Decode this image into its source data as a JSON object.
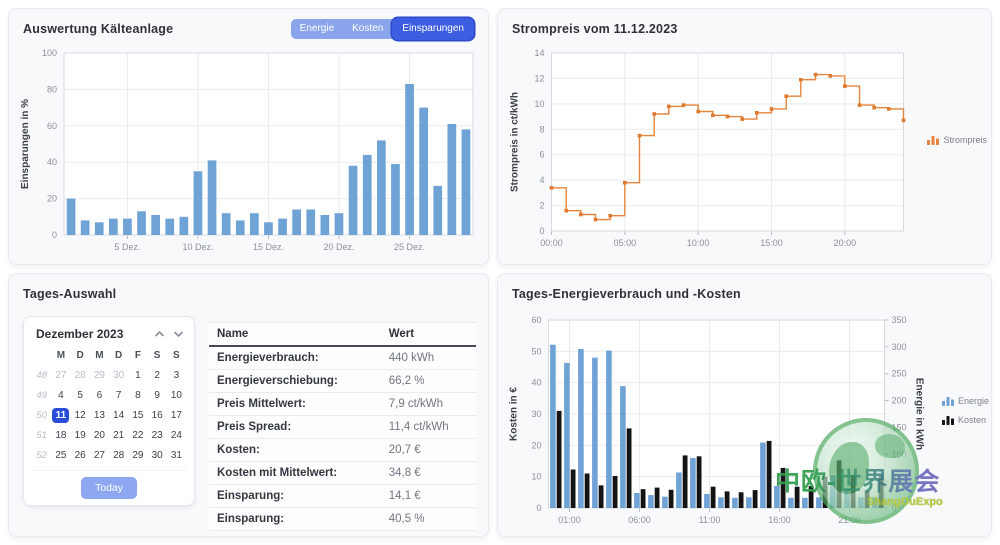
{
  "panels": {
    "auswertung": {
      "title": "Auswertung Kälteanlage",
      "buttons": [
        {
          "label": "Energie",
          "active": false
        },
        {
          "label": "Kosten",
          "active": false
        },
        {
          "label": "Einsparungen",
          "active": true
        }
      ]
    },
    "strompreis": {
      "title": "Strompreis vom 11.12.2023"
    },
    "tagesauswahl": {
      "title": "Tages-Auswahl",
      "calendar": {
        "month_label": "Dezember 2023",
        "weekday_headers": [
          "M",
          "D",
          "M",
          "D",
          "F",
          "S",
          "S"
        ],
        "weeks": [
          {
            "num": "48",
            "days": [
              {
                "d": "27",
                "muted": true
              },
              {
                "d": "28",
                "muted": true
              },
              {
                "d": "29",
                "muted": true
              },
              {
                "d": "30",
                "muted": true
              },
              {
                "d": "1"
              },
              {
                "d": "2"
              },
              {
                "d": "3"
              }
            ]
          },
          {
            "num": "49",
            "days": [
              {
                "d": "4"
              },
              {
                "d": "5"
              },
              {
                "d": "6"
              },
              {
                "d": "7"
              },
              {
                "d": "8"
              },
              {
                "d": "9"
              },
              {
                "d": "10"
              }
            ]
          },
          {
            "num": "50",
            "days": [
              {
                "d": "11",
                "selected": true
              },
              {
                "d": "12"
              },
              {
                "d": "13"
              },
              {
                "d": "14"
              },
              {
                "d": "15"
              },
              {
                "d": "16"
              },
              {
                "d": "17"
              }
            ]
          },
          {
            "num": "51",
            "days": [
              {
                "d": "18"
              },
              {
                "d": "19"
              },
              {
                "d": "20"
              },
              {
                "d": "21"
              },
              {
                "d": "22"
              },
              {
                "d": "23"
              },
              {
                "d": "24"
              }
            ]
          },
          {
            "num": "52",
            "days": [
              {
                "d": "25"
              },
              {
                "d": "26"
              },
              {
                "d": "27"
              },
              {
                "d": "28"
              },
              {
                "d": "29"
              },
              {
                "d": "30"
              },
              {
                "d": "31"
              }
            ]
          }
        ],
        "today_label": "Today"
      },
      "table": {
        "headers": [
          "Name",
          "Wert"
        ],
        "rows": [
          [
            "Energieverbrauch:",
            "440 kWh"
          ],
          [
            "Energieverschiebung:",
            "66,2 %"
          ],
          [
            "Preis Mittelwert:",
            "7,9 ct/kWh"
          ],
          [
            "Preis Spread:",
            "11,4 ct/kWh"
          ],
          [
            "Kosten:",
            "20,7 €"
          ],
          [
            "Kosten mit Mittelwert:",
            "34,8 €"
          ],
          [
            "Einsparung:",
            "14,1 €"
          ],
          [
            "Einsparung:",
            "40,5 %"
          ]
        ]
      }
    },
    "tagesenergie": {
      "title": "Tages-Energieverbrauch und -Kosten"
    }
  },
  "chart_data": [
    {
      "id": "einsparungen",
      "type": "bar",
      "ylabel": "Einsparungen in %",
      "ylim": [
        0,
        100
      ],
      "ytick_step": 20,
      "bar_color": "#6fa3d6",
      "categories_note": "days of December 2023, 1-29",
      "values": [
        20,
        8,
        7,
        9,
        9,
        13,
        11,
        9,
        10,
        35,
        41,
        12,
        8,
        12,
        7,
        9,
        14,
        14,
        11,
        12,
        38,
        44,
        52,
        39,
        83,
        70,
        27,
        61,
        58
      ],
      "xticks": [
        {
          "day": 5,
          "label": "5 Dez."
        },
        {
          "day": 10,
          "label": "10 Dez."
        },
        {
          "day": 15,
          "label": "15 Dez."
        },
        {
          "day": 20,
          "label": "20 Dez."
        },
        {
          "day": 25,
          "label": "25 Dez."
        }
      ]
    },
    {
      "id": "strompreis",
      "type": "step-line",
      "ylabel": "Strompreis in ct/kWh",
      "ylim": [
        0,
        14
      ],
      "ytick_step": 2,
      "line_color": "#e5853e",
      "marker_color": "#de7a2f",
      "hours": [
        0,
        1,
        2,
        3,
        4,
        5,
        6,
        7,
        8,
        9,
        10,
        11,
        12,
        13,
        14,
        15,
        16,
        17,
        18,
        19,
        20,
        21,
        22,
        23
      ],
      "values": [
        3.4,
        1.6,
        1.3,
        0.9,
        1.2,
        3.8,
        7.5,
        9.2,
        9.8,
        9.9,
        9.4,
        9.1,
        9.0,
        8.8,
        9.3,
        9.6,
        10.6,
        11.9,
        12.3,
        12.2,
        11.4,
        9.9,
        9.7,
        9.6
      ],
      "end_value": 8.7,
      "xticks": [
        {
          "hour": 0,
          "label": "00:00"
        },
        {
          "hour": 5,
          "label": "05:00"
        },
        {
          "hour": 10,
          "label": "10:00"
        },
        {
          "hour": 15,
          "label": "15:00"
        },
        {
          "hour": 20,
          "label": "20:00"
        }
      ],
      "legend": [
        {
          "label": "Strompreis",
          "color": "#e5853e"
        }
      ]
    },
    {
      "id": "tagesenergie",
      "type": "dual-bar",
      "ylabel_left": "Kosten in €",
      "ylabel_right": "Energie in kWh",
      "ylim_left": [
        0,
        60
      ],
      "ytick_step_left": 10,
      "ylim_right": [
        0,
        350
      ],
      "ytick_step_right": 50,
      "hours": [
        0,
        1,
        2,
        3,
        4,
        5,
        6,
        7,
        8,
        9,
        10,
        11,
        12,
        13,
        14,
        15,
        16,
        17,
        18,
        19,
        20,
        21,
        22,
        23
      ],
      "series": [
        {
          "name": "Energie",
          "axis": "right",
          "color": "#6fa3d6",
          "values": [
            304,
            270,
            296,
            280,
            293,
            227,
            28,
            24,
            21,
            66,
            93,
            26,
            20,
            19,
            20,
            122,
            41,
            19,
            19,
            20,
            61,
            35,
            20,
            20
          ]
        },
        {
          "name": "Kosten",
          "axis": "left",
          "color": "#141414",
          "values": [
            31,
            12.3,
            11,
            7.2,
            10.2,
            25.4,
            6,
            6.5,
            5.8,
            16.8,
            16.5,
            6.8,
            5.3,
            5,
            5.7,
            21.4,
            12.8,
            6.8,
            7,
            10,
            15.2,
            10.5,
            5.4,
            10.7
          ]
        }
      ],
      "xticks": [
        {
          "hour": 1,
          "label": "01:00"
        },
        {
          "hour": 6,
          "label": "06:00"
        },
        {
          "hour": 11,
          "label": "11:00"
        },
        {
          "hour": 16,
          "label": "16:00"
        },
        {
          "hour": 21,
          "label": "21:00"
        }
      ]
    }
  ],
  "watermark": {
    "line1": "中欧-世界展会",
    "line2": "ShangOuExpo"
  },
  "colors": {
    "bar_blue": "#6fa3d6",
    "line_orange": "#e5853e",
    "kosten_black": "#141414",
    "button_blue": "#8ba5ec",
    "button_active_blue": "#3e5ee2",
    "selected_day_blue": "#2a4dd8",
    "today_button_blue": "#8da7f0"
  }
}
